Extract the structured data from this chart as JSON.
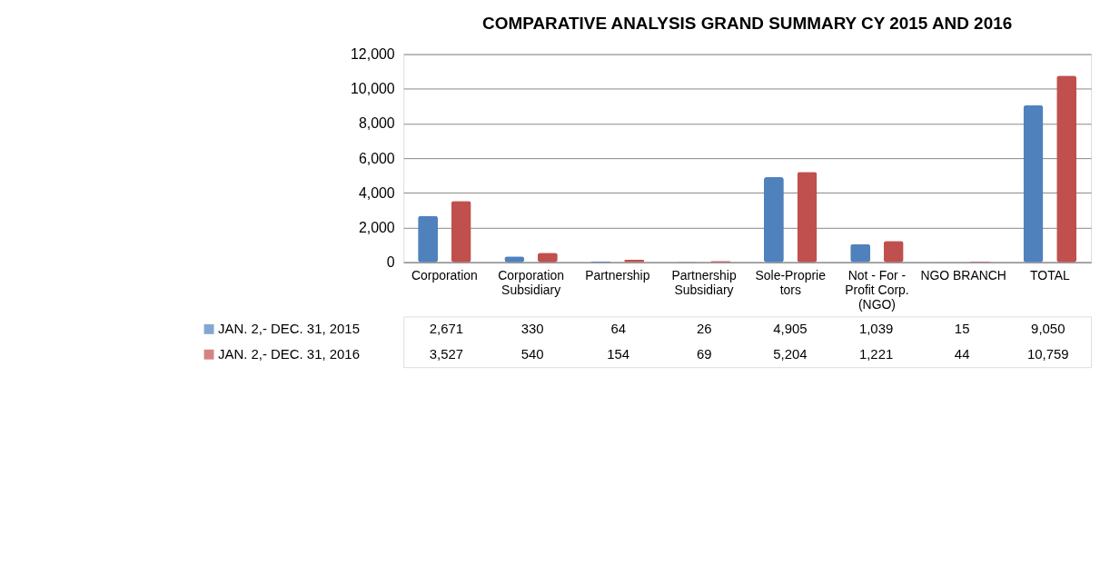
{
  "chart_data": {
    "type": "bar",
    "title": "COMPARATIVE ANALYSIS GRAND SUMMARY CY 2015 AND 2016",
    "categories": [
      "Corporation",
      "Corporation Subsidiary",
      "Partnership",
      "Partnership Subsidiary",
      "Sole-Proprietors",
      "Not - For - Profit Corp. (NGO)",
      "NGO BRANCH",
      "TOTAL"
    ],
    "series": [
      {
        "name": "JAN. 2,- DEC. 31, 2015",
        "color": "#4f81bd",
        "values": [
          2671,
          330,
          64,
          26,
          4905,
          1039,
          15,
          9050
        ],
        "value_labels": [
          "2,671",
          "330",
          "64",
          "26",
          "4,905",
          "1,039",
          "15",
          "9,050"
        ]
      },
      {
        "name": "JAN. 2,- DEC. 31, 2016",
        "color": "#c0504d",
        "values": [
          3527,
          540,
          154,
          69,
          5204,
          1221,
          44,
          10759
        ],
        "value_labels": [
          "3,527",
          "540",
          "154",
          "69",
          "5,204",
          "1,221",
          "44",
          "10,759"
        ]
      }
    ],
    "ylim": [
      0,
      12000
    ],
    "yticks": [
      0,
      {
        "value": 2000,
        "label": "2,000"
      },
      {
        "value": 4000,
        "label": "4,000"
      },
      {
        "value": 6000,
        "label": "6,000"
      },
      {
        "value": 8000,
        "label": "8,000"
      },
      {
        "value": 10000,
        "label": "10,000"
      },
      {
        "value": 12000,
        "label": "12,000"
      }
    ],
    "grid": "y",
    "legend": "bottom"
  }
}
